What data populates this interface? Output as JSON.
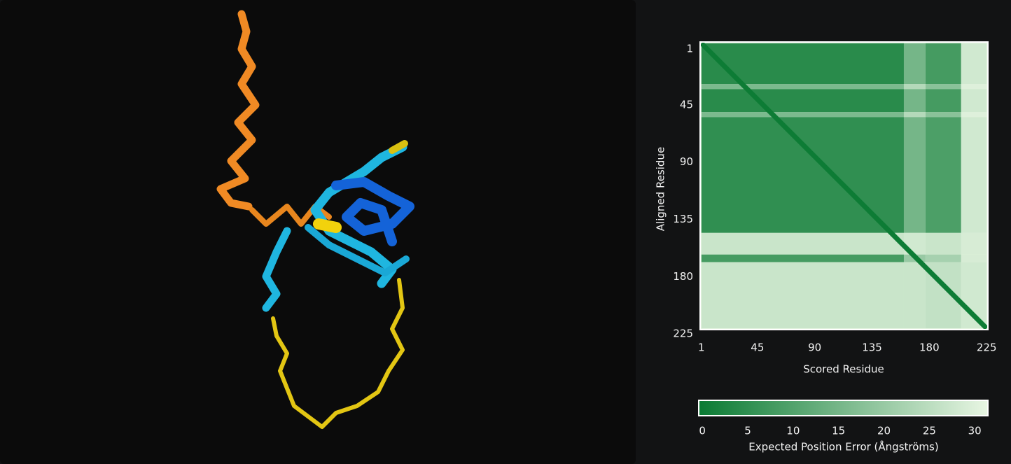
{
  "pae": {
    "ylabel": "Aligned Residue",
    "xlabel": "Scored Residue",
    "xlim": [
      0,
      226
    ],
    "ylim": [
      0,
      226
    ],
    "xticks": [
      1,
      45,
      90,
      135,
      180,
      225
    ],
    "yticks": [
      1,
      45,
      90,
      135,
      180,
      225
    ],
    "col_edges": [
      1,
      160,
      177,
      205,
      225
    ],
    "row_edges": [
      1,
      33,
      37,
      55,
      59,
      150,
      167,
      173,
      225
    ],
    "matrix": [
      [
        4,
        15,
        8,
        28
      ],
      [
        16,
        24,
        18,
        30
      ],
      [
        4,
        15,
        8,
        28
      ],
      [
        16,
        24,
        18,
        30
      ],
      [
        5,
        15,
        9,
        28
      ],
      [
        27,
        28,
        27,
        29
      ],
      [
        8,
        20,
        22,
        29
      ],
      [
        27,
        27,
        26,
        28
      ]
    ],
    "diagonal": 0,
    "colorbar": {
      "label": "Expected Position Error (Ångströms)",
      "lim": [
        -0.4,
        31.45
      ],
      "ticks": [
        0,
        5,
        10,
        15,
        20,
        25,
        30
      ],
      "colors": [
        "#0a7a33",
        "#e8f6e3"
      ]
    }
  }
}
